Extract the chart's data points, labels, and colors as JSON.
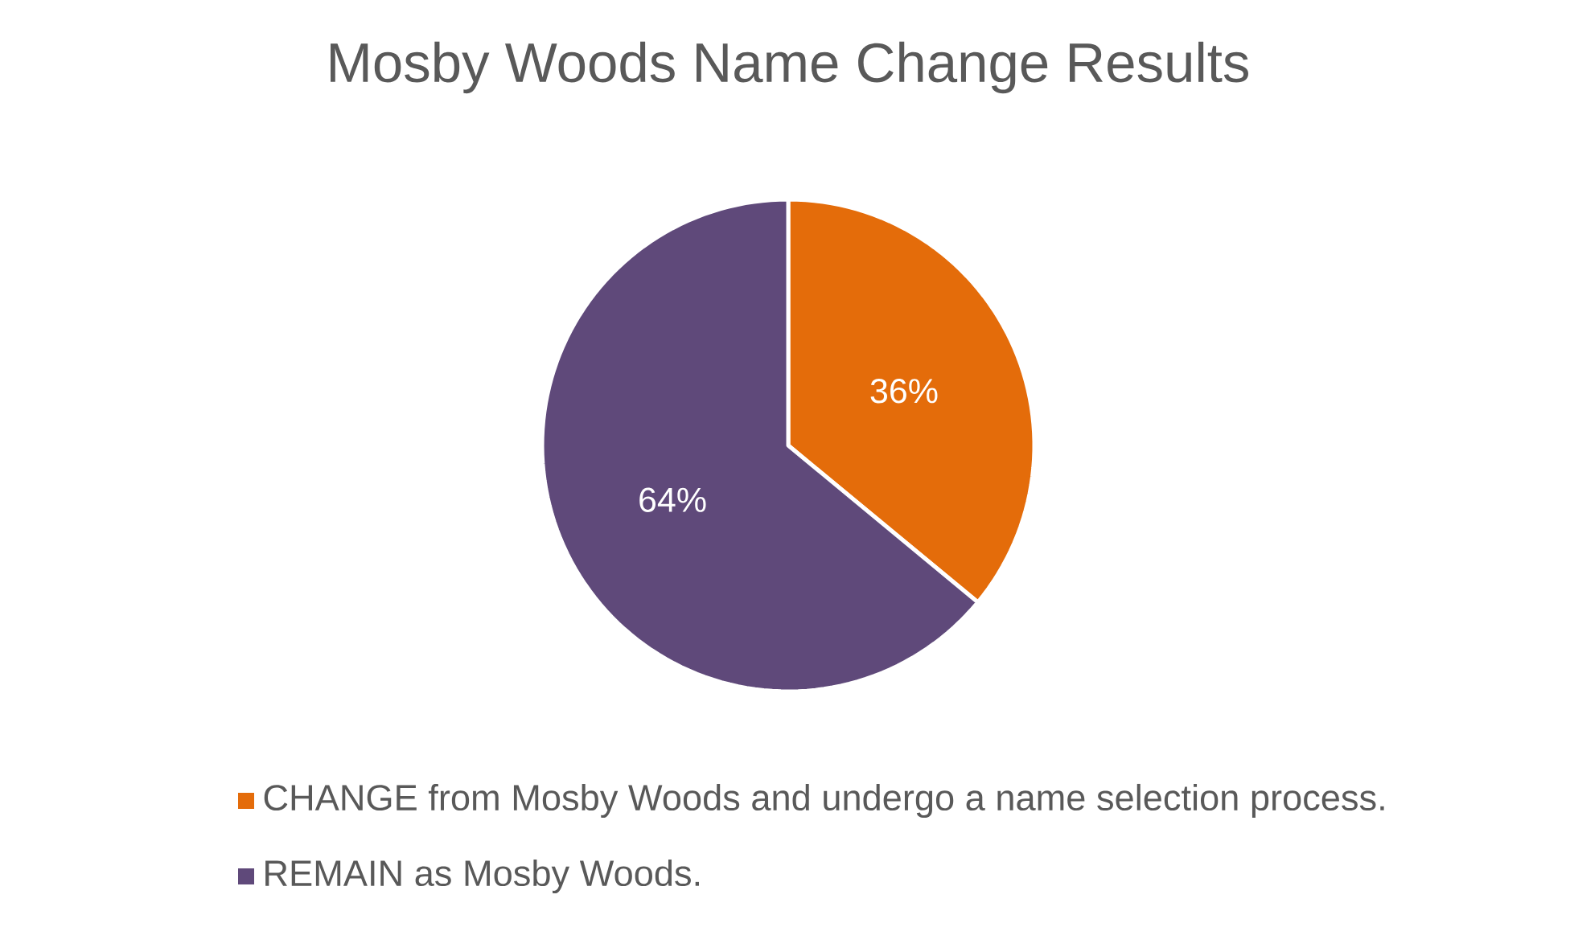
{
  "chart_data": {
    "type": "pie",
    "title": "Mosby Woods Name Change Results",
    "categories": [
      "CHANGE from Mosby Woods and undergo a name selection process.",
      "REMAIN as Mosby Woods."
    ],
    "values": [
      36,
      64
    ],
    "colors": [
      "#e46c0a",
      "#5f497a"
    ],
    "value_labels": [
      "36%",
      "64%"
    ],
    "legend": "bottom"
  }
}
